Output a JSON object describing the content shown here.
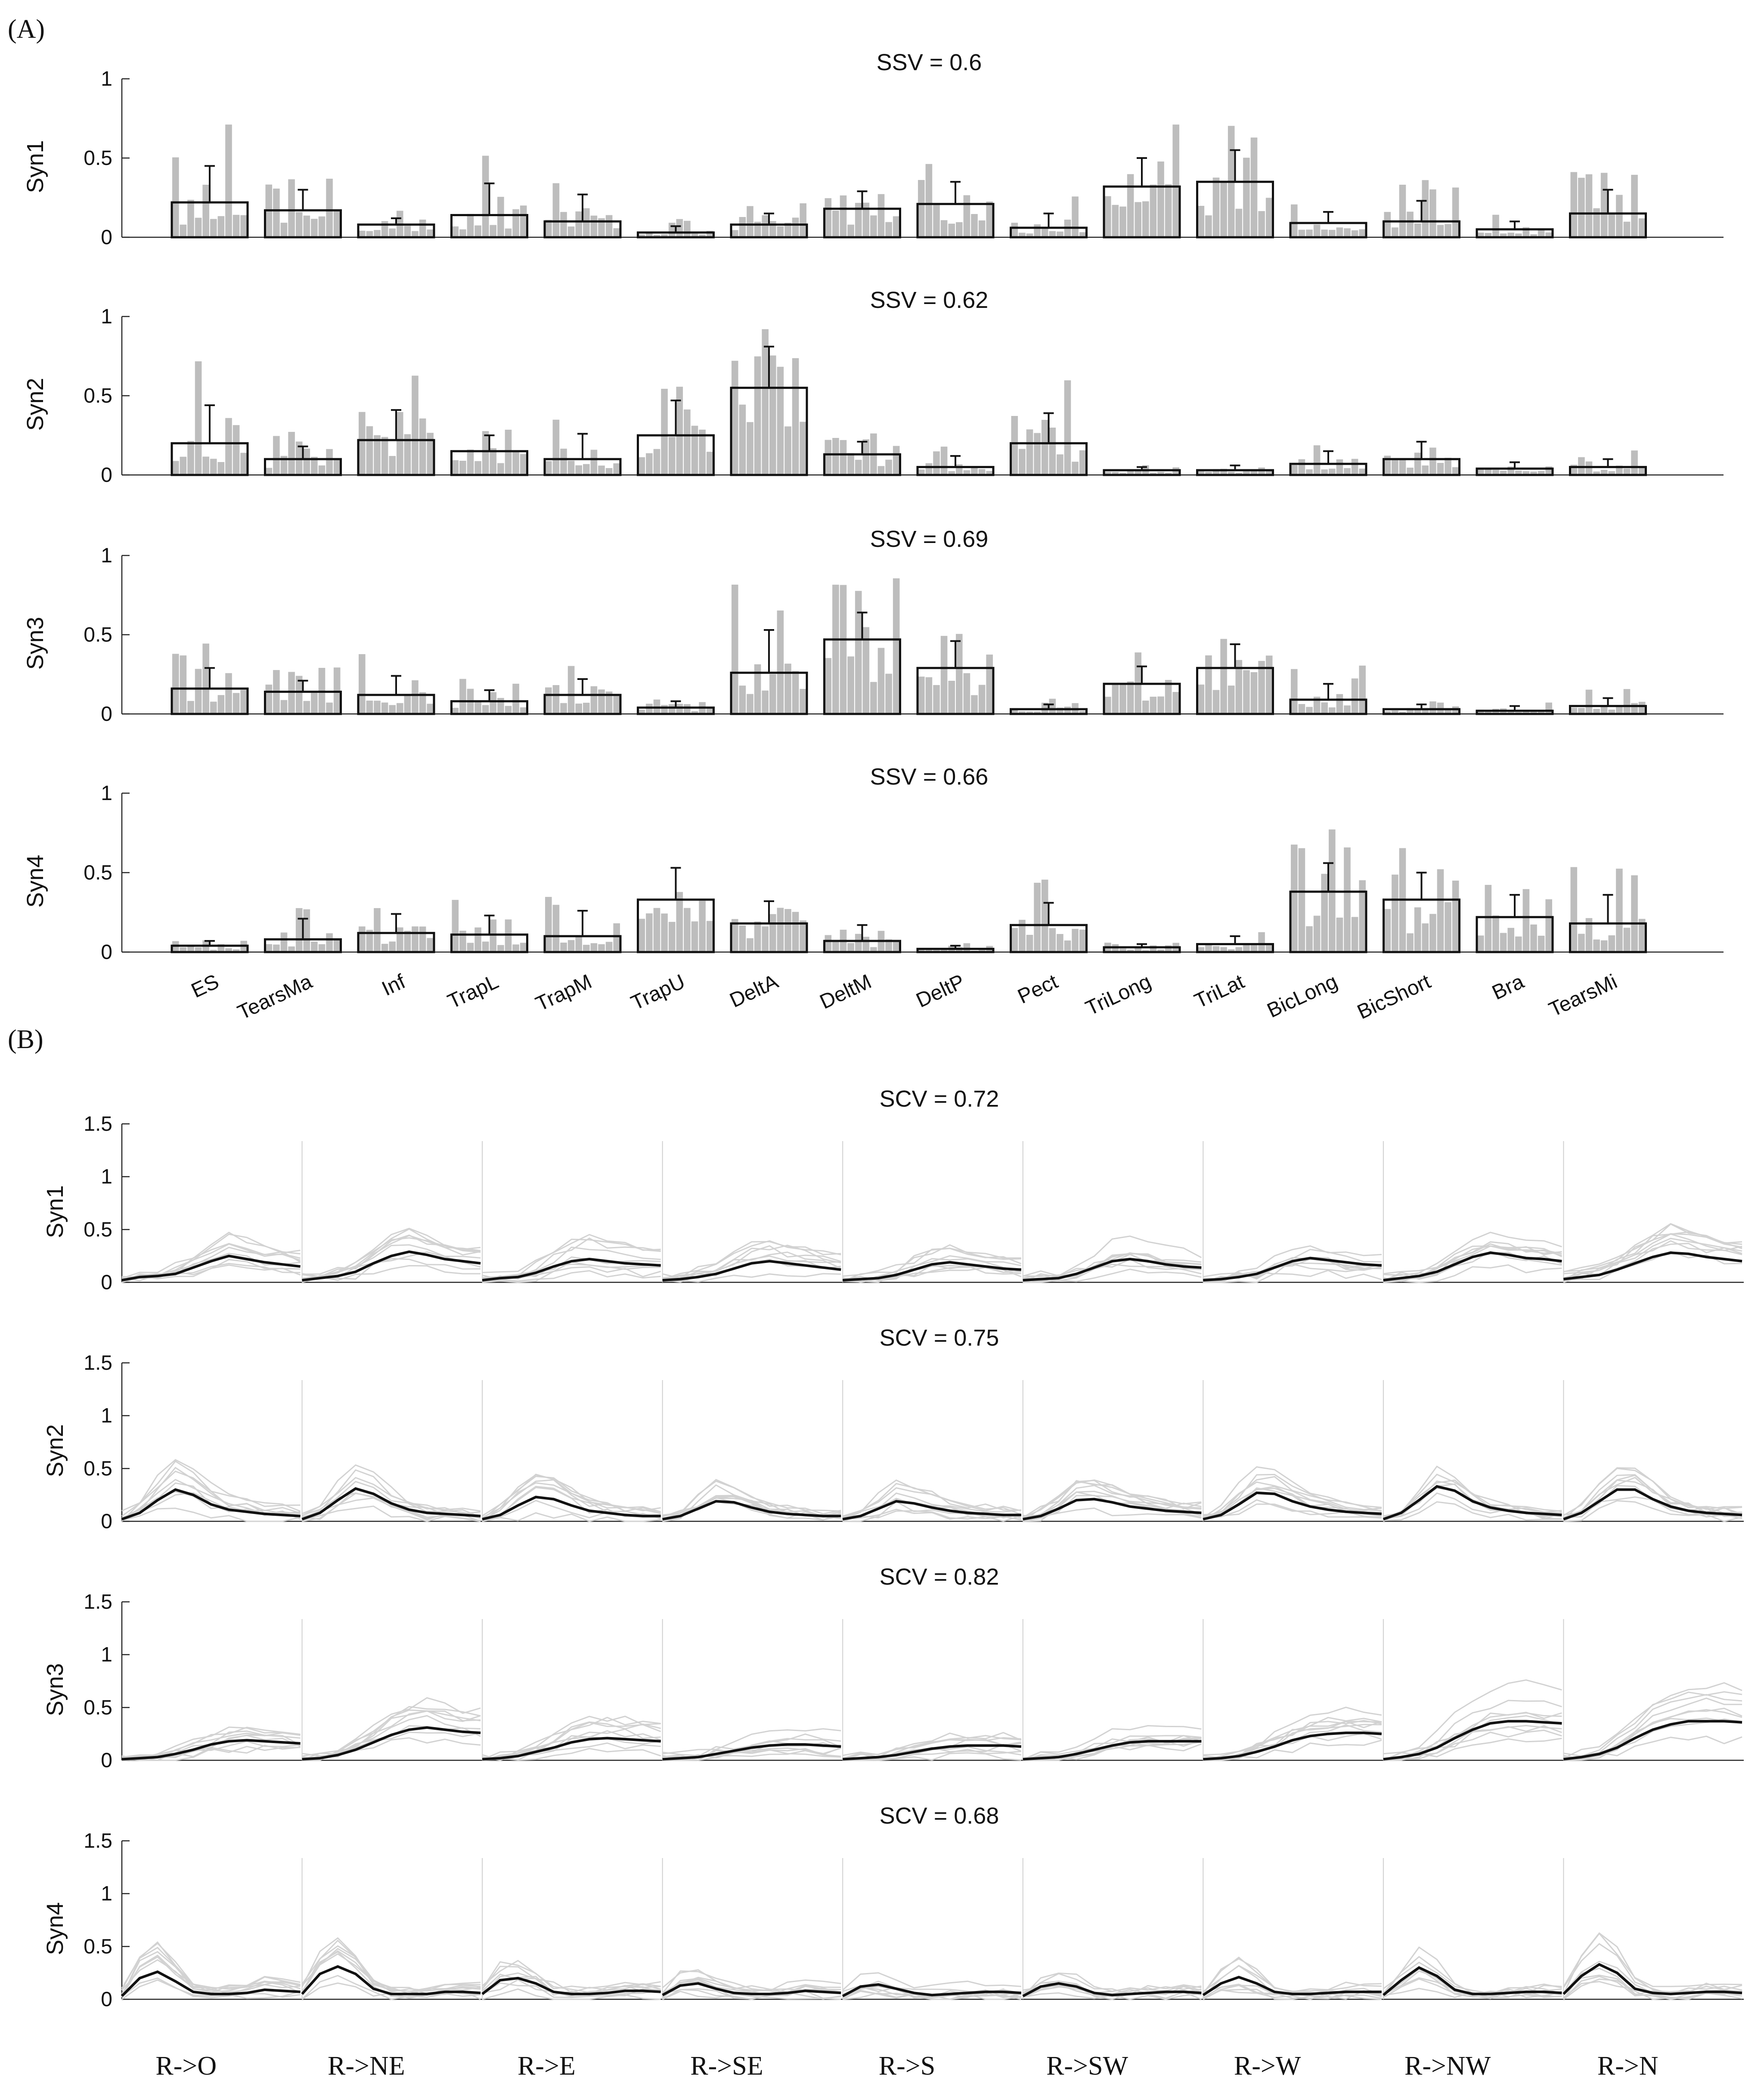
{
  "figure": {
    "panel_a_label": "(A)",
    "panel_b_label": "(B)"
  },
  "chart_data": [
    {
      "type": "bar",
      "panel": "A",
      "subtitle": "SSV = 0.6",
      "ylabel": "Syn1",
      "ylim": [
        0,
        1
      ],
      "yticks": [
        0,
        0.5,
        1
      ],
      "ytick_labels": [
        "0",
        "0.5",
        "1"
      ],
      "categories": [
        "ES",
        "TearsMa",
        "Inf",
        "TrapL",
        "TrapM",
        "TrapU",
        "DeltA",
        "DeltM",
        "DeltP",
        "Pect",
        "TriLong",
        "TriLat",
        "BicLong",
        "BicShort",
        "Bra",
        "TearsMi"
      ],
      "values": [
        0.22,
        0.17,
        0.08,
        0.14,
        0.1,
        0.03,
        0.08,
        0.18,
        0.21,
        0.06,
        0.32,
        0.35,
        0.09,
        0.1,
        0.05,
        0.15
      ],
      "error": [
        0.23,
        0.13,
        0.04,
        0.2,
        0.17,
        0.04,
        0.07,
        0.11,
        0.14,
        0.09,
        0.18,
        0.2,
        0.07,
        0.13,
        0.05,
        0.15
      ]
    },
    {
      "type": "bar",
      "panel": "A",
      "subtitle": "SSV = 0.62",
      "ylabel": "Syn2",
      "ylim": [
        0,
        1
      ],
      "yticks": [
        0,
        0.5,
        1
      ],
      "ytick_labels": [
        "0",
        "0.5",
        "1"
      ],
      "categories": [
        "ES",
        "TearsMa",
        "Inf",
        "TrapL",
        "TrapM",
        "TrapU",
        "DeltA",
        "DeltM",
        "DeltP",
        "Pect",
        "TriLong",
        "TriLat",
        "BicLong",
        "BicShort",
        "Bra",
        "TearsMi"
      ],
      "values": [
        0.2,
        0.1,
        0.22,
        0.15,
        0.1,
        0.25,
        0.55,
        0.13,
        0.05,
        0.2,
        0.03,
        0.03,
        0.07,
        0.1,
        0.04,
        0.05
      ],
      "error": [
        0.24,
        0.08,
        0.19,
        0.1,
        0.16,
        0.22,
        0.26,
        0.08,
        0.07,
        0.19,
        0.02,
        0.03,
        0.08,
        0.11,
        0.04,
        0.05
      ]
    },
    {
      "type": "bar",
      "panel": "A",
      "subtitle": "SSV = 0.69",
      "ylabel": "Syn3",
      "ylim": [
        0,
        1
      ],
      "yticks": [
        0,
        0.5,
        1
      ],
      "ytick_labels": [
        "0",
        "0.5",
        "1"
      ],
      "categories": [
        "ES",
        "TearsMa",
        "Inf",
        "TrapL",
        "TrapM",
        "TrapU",
        "DeltA",
        "DeltM",
        "DeltP",
        "Pect",
        "TriLong",
        "TriLat",
        "BicLong",
        "BicShort",
        "Bra",
        "TearsMi"
      ],
      "values": [
        0.16,
        0.14,
        0.12,
        0.08,
        0.12,
        0.04,
        0.26,
        0.47,
        0.29,
        0.03,
        0.19,
        0.29,
        0.09,
        0.03,
        0.02,
        0.05
      ],
      "error": [
        0.13,
        0.07,
        0.12,
        0.07,
        0.1,
        0.04,
        0.27,
        0.17,
        0.17,
        0.03,
        0.11,
        0.15,
        0.1,
        0.03,
        0.03,
        0.05
      ]
    },
    {
      "type": "bar",
      "panel": "A",
      "subtitle": "SSV = 0.66",
      "ylabel": "Syn4",
      "ylim": [
        0,
        1
      ],
      "yticks": [
        0,
        0.5,
        1
      ],
      "ytick_labels": [
        "0",
        "0.5",
        "1"
      ],
      "categories": [
        "ES",
        "TearsMa",
        "Inf",
        "TrapL",
        "TrapM",
        "TrapU",
        "DeltA",
        "DeltM",
        "DeltP",
        "Pect",
        "TriLong",
        "TriLat",
        "BicLong",
        "BicShort",
        "Bra",
        "TearsMi"
      ],
      "values": [
        0.04,
        0.08,
        0.12,
        0.11,
        0.1,
        0.33,
        0.18,
        0.07,
        0.02,
        0.17,
        0.03,
        0.05,
        0.38,
        0.33,
        0.22,
        0.18
      ],
      "error": [
        0.03,
        0.13,
        0.12,
        0.12,
        0.16,
        0.2,
        0.14,
        0.1,
        0.02,
        0.14,
        0.02,
        0.05,
        0.18,
        0.17,
        0.14,
        0.18
      ]
    },
    {
      "type": "line",
      "panel": "B",
      "subtitle": "SCV = 0.72",
      "ylabel": "Syn1",
      "ylim": [
        0,
        1.5
      ],
      "yticks": [
        0,
        0.5,
        1,
        1.5
      ],
      "ytick_labels": [
        "0",
        "0.5",
        "1",
        "1.5"
      ],
      "segments": [
        "R->O",
        "R->NE",
        "R->E",
        "R->SE",
        "R->S",
        "R->SW",
        "R->W",
        "R->NW",
        "R->N"
      ],
      "mean_segments": [
        [
          0.02,
          0.05,
          0.06,
          0.08,
          0.14,
          0.2,
          0.25,
          0.22,
          0.19,
          0.17,
          0.15
        ],
        [
          0.02,
          0.04,
          0.06,
          0.1,
          0.18,
          0.25,
          0.29,
          0.26,
          0.22,
          0.2,
          0.18
        ],
        [
          0.02,
          0.04,
          0.05,
          0.09,
          0.15,
          0.2,
          0.22,
          0.2,
          0.18,
          0.17,
          0.16
        ],
        [
          0.02,
          0.03,
          0.05,
          0.08,
          0.13,
          0.18,
          0.2,
          0.18,
          0.16,
          0.14,
          0.12
        ],
        [
          0.02,
          0.03,
          0.04,
          0.07,
          0.12,
          0.17,
          0.19,
          0.17,
          0.15,
          0.13,
          0.12
        ],
        [
          0.02,
          0.03,
          0.04,
          0.08,
          0.14,
          0.2,
          0.22,
          0.2,
          0.17,
          0.15,
          0.14
        ],
        [
          0.02,
          0.03,
          0.05,
          0.08,
          0.14,
          0.2,
          0.23,
          0.21,
          0.19,
          0.17,
          0.16
        ],
        [
          0.02,
          0.04,
          0.06,
          0.1,
          0.17,
          0.24,
          0.28,
          0.26,
          0.23,
          0.22,
          0.2
        ],
        [
          0.03,
          0.05,
          0.07,
          0.12,
          0.18,
          0.24,
          0.28,
          0.27,
          0.24,
          0.22,
          0.2
        ]
      ]
    },
    {
      "type": "line",
      "panel": "B",
      "subtitle": "SCV = 0.75",
      "ylabel": "Syn2",
      "ylim": [
        0,
        1.5
      ],
      "yticks": [
        0,
        0.5,
        1,
        1.5
      ],
      "ytick_labels": [
        "0",
        "0.5",
        "1",
        "1.5"
      ],
      "segments": [
        "R->O",
        "R->NE",
        "R->E",
        "R->SE",
        "R->S",
        "R->SW",
        "R->W",
        "R->NW",
        "R->N"
      ],
      "mean_segments": [
        [
          0.02,
          0.08,
          0.2,
          0.3,
          0.25,
          0.16,
          0.11,
          0.09,
          0.07,
          0.06,
          0.05
        ],
        [
          0.02,
          0.08,
          0.2,
          0.31,
          0.26,
          0.17,
          0.11,
          0.08,
          0.07,
          0.06,
          0.05
        ],
        [
          0.02,
          0.06,
          0.15,
          0.23,
          0.21,
          0.15,
          0.1,
          0.08,
          0.06,
          0.05,
          0.05
        ],
        [
          0.02,
          0.05,
          0.12,
          0.19,
          0.18,
          0.13,
          0.09,
          0.07,
          0.06,
          0.05,
          0.05
        ],
        [
          0.02,
          0.05,
          0.12,
          0.19,
          0.17,
          0.13,
          0.1,
          0.08,
          0.07,
          0.06,
          0.06
        ],
        [
          0.02,
          0.05,
          0.12,
          0.2,
          0.21,
          0.18,
          0.14,
          0.12,
          0.1,
          0.09,
          0.08
        ],
        [
          0.02,
          0.06,
          0.16,
          0.27,
          0.26,
          0.19,
          0.14,
          0.11,
          0.09,
          0.08,
          0.07
        ],
        [
          0.02,
          0.08,
          0.2,
          0.33,
          0.29,
          0.19,
          0.13,
          0.1,
          0.08,
          0.07,
          0.06
        ],
        [
          0.02,
          0.08,
          0.19,
          0.3,
          0.3,
          0.21,
          0.14,
          0.1,
          0.08,
          0.07,
          0.06
        ]
      ]
    },
    {
      "type": "line",
      "panel": "B",
      "subtitle": "SCV = 0.82",
      "ylabel": "Syn3",
      "ylim": [
        0,
        1.5
      ],
      "yticks": [
        0,
        0.5,
        1,
        1.5
      ],
      "ytick_labels": [
        "0",
        "0.5",
        "1",
        "1.5"
      ],
      "segments": [
        "R->O",
        "R->NE",
        "R->E",
        "R->SE",
        "R->S",
        "R->SW",
        "R->W",
        "R->NW",
        "R->N"
      ],
      "mean_segments": [
        [
          0.01,
          0.02,
          0.03,
          0.06,
          0.1,
          0.15,
          0.18,
          0.19,
          0.18,
          0.17,
          0.16
        ],
        [
          0.01,
          0.02,
          0.05,
          0.1,
          0.17,
          0.24,
          0.29,
          0.31,
          0.29,
          0.27,
          0.26
        ],
        [
          0.01,
          0.02,
          0.04,
          0.08,
          0.12,
          0.17,
          0.2,
          0.21,
          0.2,
          0.19,
          0.18
        ],
        [
          0.01,
          0.02,
          0.03,
          0.06,
          0.09,
          0.12,
          0.14,
          0.15,
          0.15,
          0.14,
          0.13
        ],
        [
          0.01,
          0.02,
          0.03,
          0.05,
          0.08,
          0.11,
          0.13,
          0.14,
          0.14,
          0.14,
          0.13
        ],
        [
          0.01,
          0.02,
          0.03,
          0.06,
          0.1,
          0.14,
          0.17,
          0.18,
          0.18,
          0.18,
          0.18
        ],
        [
          0.01,
          0.02,
          0.04,
          0.08,
          0.13,
          0.19,
          0.23,
          0.25,
          0.26,
          0.26,
          0.25
        ],
        [
          0.01,
          0.03,
          0.06,
          0.12,
          0.21,
          0.29,
          0.35,
          0.37,
          0.37,
          0.36,
          0.35
        ],
        [
          0.01,
          0.03,
          0.06,
          0.12,
          0.21,
          0.29,
          0.34,
          0.37,
          0.37,
          0.37,
          0.36
        ]
      ]
    },
    {
      "type": "line",
      "panel": "B",
      "subtitle": "SCV = 0.68",
      "ylabel": "Syn4",
      "ylim": [
        0,
        1.5
      ],
      "yticks": [
        0,
        0.5,
        1,
        1.5
      ],
      "ytick_labels": [
        "0",
        "0.5",
        "1",
        "1.5"
      ],
      "segments": [
        "R->O",
        "R->NE",
        "R->E",
        "R->SE",
        "R->S",
        "R->SW",
        "R->W",
        "R->NW",
        "R->N"
      ],
      "mean_segments": [
        [
          0.03,
          0.2,
          0.26,
          0.17,
          0.07,
          0.05,
          0.05,
          0.06,
          0.09,
          0.08,
          0.07
        ],
        [
          0.05,
          0.24,
          0.31,
          0.24,
          0.1,
          0.05,
          0.05,
          0.05,
          0.07,
          0.07,
          0.06
        ],
        [
          0.05,
          0.18,
          0.2,
          0.15,
          0.07,
          0.05,
          0.05,
          0.06,
          0.08,
          0.08,
          0.07
        ],
        [
          0.04,
          0.13,
          0.15,
          0.1,
          0.06,
          0.05,
          0.05,
          0.06,
          0.08,
          0.07,
          0.06
        ],
        [
          0.03,
          0.12,
          0.14,
          0.1,
          0.06,
          0.04,
          0.05,
          0.06,
          0.07,
          0.07,
          0.06
        ],
        [
          0.03,
          0.12,
          0.15,
          0.12,
          0.06,
          0.04,
          0.05,
          0.06,
          0.07,
          0.07,
          0.06
        ],
        [
          0.04,
          0.15,
          0.21,
          0.15,
          0.07,
          0.05,
          0.05,
          0.06,
          0.07,
          0.07,
          0.07
        ],
        [
          0.04,
          0.18,
          0.3,
          0.22,
          0.09,
          0.05,
          0.05,
          0.06,
          0.07,
          0.07,
          0.06
        ],
        [
          0.05,
          0.22,
          0.33,
          0.25,
          0.1,
          0.06,
          0.05,
          0.06,
          0.07,
          0.07,
          0.06
        ]
      ]
    }
  ]
}
